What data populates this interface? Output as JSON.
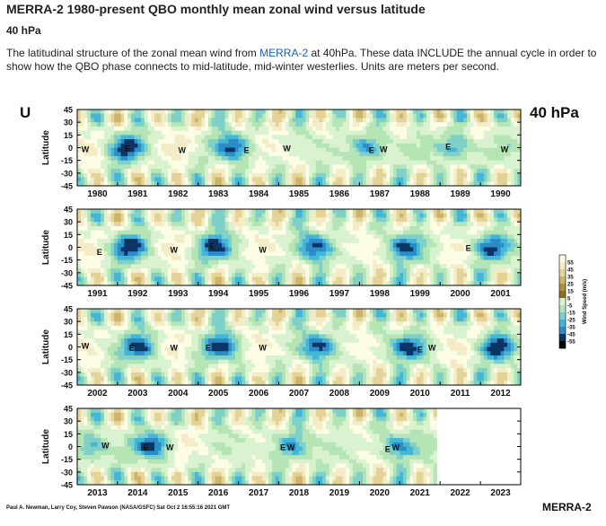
{
  "page": {
    "title": "MERRA-2 1980-present QBO monthly mean zonal wind versus latitude",
    "subtitle": "40 hPa",
    "description_prefix": "The latitudinal structure of the zonal mean wind from ",
    "description_link": "MERRA-2",
    "description_suffix": " at 40hPa. These data INCLUDE the annual cycle in order to show how the QBO phase connects to mid-latitude, mid-winter westerlies. Units are meters per second."
  },
  "chart_data": {
    "type": "heatmap",
    "variable_label": "U",
    "level_label": "40 hPa",
    "ylabel": "Latitude",
    "yticks": [
      "45",
      "30",
      "15",
      "0",
      "-15",
      "-30",
      "-45"
    ],
    "ylim": [
      -45,
      45
    ],
    "colorbar_label": "Wind Speed (m/s)",
    "colorbar_ticks": [
      "55",
      "45",
      "35",
      "25",
      "15",
      "5",
      "-5",
      "-15",
      "-25",
      "-35",
      "-45",
      "-55"
    ],
    "colorbar_colors": [
      "#fdfde6",
      "#f3ecc6",
      "#e3d397",
      "#cdb46a",
      "#b08f3e",
      "#8f6e1f",
      "#d9f2cf",
      "#b5e5b5",
      "#7fd0c8",
      "#45b7d6",
      "#2b8cc7",
      "#0a3566",
      "#050505"
    ],
    "panels": [
      {
        "years": [
          "1980",
          "1981",
          "1982",
          "1983",
          "1984",
          "1985",
          "1986",
          "1987",
          "1988",
          "1989",
          "1990"
        ],
        "labels": [
          {
            "t": "W",
            "year": 0.2,
            "lat": -1
          },
          {
            "t": "E",
            "year": 1.25,
            "lat": 0
          },
          {
            "t": "W",
            "year": 2.6,
            "lat": -2
          },
          {
            "t": "E",
            "year": 4.2,
            "lat": -2
          },
          {
            "t": "W",
            "year": 5.2,
            "lat": 0
          },
          {
            "t": "E",
            "year": 7.3,
            "lat": -2
          },
          {
            "t": "W",
            "year": 7.6,
            "lat": -1
          },
          {
            "t": "E",
            "year": 9.2,
            "lat": 2
          },
          {
            "t": "W",
            "year": 10.6,
            "lat": -1
          }
        ],
        "easterly_years": [
          1.2,
          3.9,
          7.2,
          9.4
        ]
      },
      {
        "years": [
          "1991",
          "1992",
          "1993",
          "1994",
          "1995",
          "1996",
          "1997",
          "1998",
          "1999",
          "2000",
          "2001"
        ],
        "labels": [
          {
            "t": "E",
            "year": 0.55,
            "lat": -5
          },
          {
            "t": "W",
            "year": 2.4,
            "lat": -2
          },
          {
            "t": "E",
            "year": 3.35,
            "lat": 2
          },
          {
            "t": "W",
            "year": 4.6,
            "lat": -2
          },
          {
            "t": "E",
            "year": 9.7,
            "lat": 0
          }
        ],
        "easterly_years": [
          1.3,
          3.4,
          5.9,
          8.1,
          10.2
        ]
      },
      {
        "years": [
          "2002",
          "2003",
          "2004",
          "2005",
          "2006",
          "2007",
          "2008",
          "2009",
          "2010",
          "2011",
          "2012"
        ],
        "labels": [
          {
            "t": "W",
            "year": 0.2,
            "lat": 2
          },
          {
            "t": "E",
            "year": 1.35,
            "lat": 0
          },
          {
            "t": "W",
            "year": 2.4,
            "lat": 0
          },
          {
            "t": "E",
            "year": 3.25,
            "lat": 0
          },
          {
            "t": "W",
            "year": 4.6,
            "lat": 0
          },
          {
            "t": "E",
            "year": 8.5,
            "lat": -2
          },
          {
            "t": "W",
            "year": 8.8,
            "lat": 0
          }
        ],
        "easterly_years": [
          1.6,
          3.6,
          6.0,
          8.2,
          10.4
        ]
      },
      {
        "years": [
          "2013",
          "2014",
          "2015",
          "2016",
          "2017",
          "2018",
          "2019",
          "2020",
          "2021",
          "2022",
          "2023"
        ],
        "labels": [
          {
            "t": "W",
            "year": 0.7,
            "lat": 2
          },
          {
            "t": "E",
            "year": 1.7,
            "lat": 0
          },
          {
            "t": "W",
            "year": 2.3,
            "lat": 0
          },
          {
            "t": "E",
            "year": 5.1,
            "lat": 0
          },
          {
            "t": "W",
            "year": 5.3,
            "lat": 0
          },
          {
            "t": "E",
            "year": 7.7,
            "lat": -2
          },
          {
            "t": "W",
            "year": 7.9,
            "lat": 0
          }
        ],
        "easterly_years": [
          0.4,
          1.9,
          5.3,
          7.9
        ],
        "data_extent_years": 8.95
      }
    ],
    "credit": "Paul A. Newman, Larry Coy, Steven Pawson (NASA/GSFC) Sat Oct  2 16:55:16 2021 GMT",
    "source_label": "MERRA-2"
  }
}
